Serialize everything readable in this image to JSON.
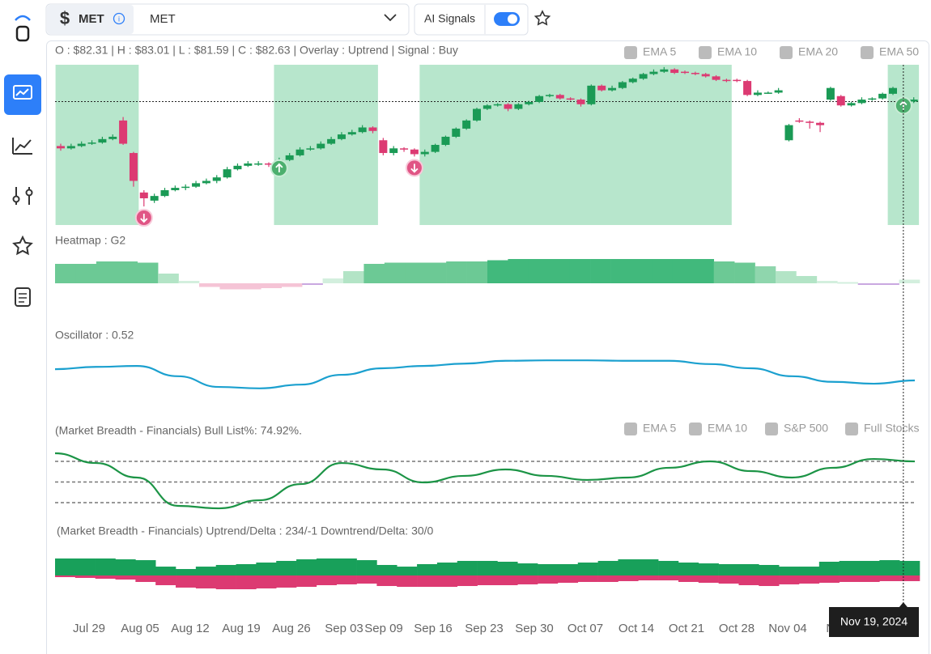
{
  "toolbar": {
    "symbol": "MET",
    "search": "MET",
    "ai_signals": "AI Signals"
  },
  "chart": {
    "type": "candlestick",
    "info": "O : $82.31 | H : $83.01 | L : $81.59 | C : $82.63 | Overlay  : Uptrend | Signal : Buy",
    "legend": [
      "EMA 5",
      "EMA 10",
      "EMA 20",
      "EMA 50"
    ],
    "ylim": [
      72,
      85.8
    ],
    "candles": [
      [
        78.8,
        79.0,
        78.4,
        78.6
      ],
      [
        78.6,
        79.0,
        78.5,
        78.8
      ],
      [
        78.8,
        79.2,
        78.7,
        79.0
      ],
      [
        79.0,
        79.3,
        78.9,
        79.1
      ],
      [
        79.1,
        79.6,
        79.0,
        79.4
      ],
      [
        79.4,
        79.8,
        79.3,
        79.6
      ],
      [
        81.0,
        81.3,
        78.9,
        79.0
      ],
      [
        78.2,
        78.3,
        75.3,
        75.8
      ],
      [
        74.8,
        75.0,
        73.6,
        74.3
      ],
      [
        74.1,
        74.7,
        73.9,
        74.5
      ],
      [
        74.5,
        75.2,
        74.4,
        75.0
      ],
      [
        75.0,
        75.4,
        74.9,
        75.2
      ],
      [
        75.2,
        75.5,
        75.0,
        75.3
      ],
      [
        75.3,
        75.8,
        75.2,
        75.6
      ],
      [
        75.6,
        76.0,
        75.5,
        75.8
      ],
      [
        75.8,
        76.3,
        75.6,
        76.1
      ],
      [
        76.1,
        77.0,
        76.0,
        76.8
      ],
      [
        76.8,
        77.3,
        76.7,
        77.1
      ],
      [
        77.1,
        77.5,
        77.0,
        77.3
      ],
      [
        77.3,
        77.5,
        77.1,
        77.3
      ],
      [
        77.3,
        77.4,
        77.0,
        77.2
      ],
      [
        77.2,
        77.8,
        77.1,
        77.6
      ],
      [
        77.6,
        78.2,
        77.5,
        78.0
      ],
      [
        78.0,
        78.7,
        77.9,
        78.5
      ],
      [
        78.5,
        78.8,
        78.4,
        78.6
      ],
      [
        78.6,
        79.2,
        78.5,
        79.0
      ],
      [
        79.0,
        79.6,
        78.9,
        79.4
      ],
      [
        79.4,
        80.0,
        79.3,
        79.8
      ],
      [
        79.8,
        80.2,
        79.7,
        80.0
      ],
      [
        80.0,
        80.6,
        79.9,
        80.4
      ],
      [
        80.4,
        80.5,
        79.9,
        80.1
      ],
      [
        79.3,
        79.5,
        78.0,
        78.2
      ],
      [
        78.2,
        78.8,
        78.0,
        78.6
      ],
      [
        78.6,
        78.7,
        78.3,
        78.5
      ],
      [
        78.5,
        78.6,
        77.9,
        78.1
      ],
      [
        78.1,
        78.5,
        77.9,
        78.3
      ],
      [
        78.3,
        79.0,
        78.2,
        78.9
      ],
      [
        78.9,
        79.7,
        78.8,
        79.6
      ],
      [
        79.6,
        80.4,
        79.5,
        80.3
      ],
      [
        80.3,
        81.1,
        80.2,
        81.0
      ],
      [
        81.0,
        82.1,
        80.9,
        82.0
      ],
      [
        82.0,
        82.4,
        81.9,
        82.3
      ],
      [
        82.3,
        82.5,
        82.2,
        82.4
      ],
      [
        82.4,
        82.5,
        81.8,
        82.0
      ],
      [
        82.0,
        82.5,
        81.9,
        82.4
      ],
      [
        82.4,
        82.7,
        82.3,
        82.6
      ],
      [
        82.6,
        83.2,
        82.5,
        83.1
      ],
      [
        83.1,
        83.3,
        83.0,
        83.2
      ],
      [
        83.2,
        83.3,
        82.8,
        82.9
      ],
      [
        82.9,
        83.0,
        82.7,
        82.8
      ],
      [
        82.8,
        82.9,
        82.2,
        82.4
      ],
      [
        82.4,
        84.1,
        82.3,
        84.0
      ],
      [
        84.0,
        84.1,
        83.5,
        83.6
      ],
      [
        83.6,
        84.0,
        83.5,
        83.8
      ],
      [
        83.8,
        84.4,
        83.7,
        84.3
      ],
      [
        84.3,
        84.7,
        84.2,
        84.6
      ],
      [
        84.6,
        85.1,
        84.5,
        85.0
      ],
      [
        85.0,
        85.4,
        84.9,
        85.2
      ],
      [
        85.2,
        85.6,
        85.1,
        85.4
      ],
      [
        85.4,
        85.5,
        85.0,
        85.1
      ],
      [
        85.2,
        85.3,
        85.0,
        85.1
      ],
      [
        85.1,
        85.2,
        84.9,
        85.0
      ],
      [
        85.0,
        85.1,
        84.7,
        84.8
      ],
      [
        84.8,
        84.9,
        84.4,
        84.5
      ],
      [
        84.5,
        84.6,
        84.3,
        84.4
      ],
      [
        84.5,
        84.6,
        84.3,
        84.4
      ],
      [
        84.4,
        84.5,
        83.1,
        83.2
      ],
      [
        83.2,
        83.6,
        83.1,
        83.4
      ],
      [
        83.4,
        83.5,
        83.3,
        83.4
      ],
      [
        83.4,
        83.8,
        83.3,
        83.6
      ],
      [
        79.3,
        80.7,
        79.2,
        80.6
      ],
      [
        81.0,
        81.2,
        80.8,
        80.9
      ],
      [
        80.9,
        81.0,
        80.3,
        80.8
      ],
      [
        80.8,
        80.9,
        80.0,
        80.6
      ],
      [
        82.8,
        83.9,
        82.7,
        83.8
      ],
      [
        83.1,
        83.2,
        82.2,
        82.3
      ],
      [
        82.3,
        82.6,
        82.2,
        82.5
      ],
      [
        82.5,
        83.0,
        82.4,
        82.8
      ],
      [
        82.8,
        83.0,
        82.7,
        82.9
      ],
      [
        82.9,
        83.4,
        82.8,
        83.3
      ],
      [
        83.3,
        83.9,
        83.2,
        83.8
      ],
      [
        82.31,
        83.01,
        81.59,
        82.63
      ],
      [
        82.63,
        83.0,
        82.5,
        82.8
      ]
    ],
    "up_color": "#1a9a55",
    "down_color": "#dc3a72",
    "uptrend_zones": [
      [
        0,
        7
      ],
      [
        21,
        30
      ],
      [
        35,
        64
      ],
      [
        80,
        82
      ]
    ],
    "zone_color": "#b7e6cc",
    "signals": [
      {
        "at": 8,
        "type": "sell"
      },
      {
        "at": 21,
        "type": "buy"
      },
      {
        "at": 34,
        "type": "sell"
      },
      {
        "at": 81,
        "type": "buy"
      }
    ],
    "crosshair_at": 81
  },
  "heatmap": {
    "type": "bar",
    "title": "Heatmap : G2",
    "ylim": [
      -1,
      1
    ],
    "values": [
      0.8,
      0.8,
      0.9,
      0.9,
      0.85,
      0.4,
      0.1,
      -0.15,
      -0.25,
      -0.25,
      -0.2,
      -0.15,
      -0.05,
      0.2,
      0.5,
      0.8,
      0.85,
      0.85,
      0.85,
      0.9,
      0.9,
      0.95,
      1.0,
      1.0,
      1.0,
      1.0,
      1.0,
      1.0,
      1.0,
      1.0,
      1.0,
      1.0,
      0.9,
      0.85,
      0.7,
      0.5,
      0.3,
      0.1,
      0.05,
      -0.05,
      -0.05,
      0.15
    ]
  },
  "oscillator": {
    "type": "line",
    "title": "Oscillator : 0.52",
    "ylim": [
      0,
      1.3
    ],
    "color": "#1ba0cf",
    "values": [
      0.76,
      0.81,
      0.83,
      0.61,
      0.38,
      0.35,
      0.43,
      0.64,
      0.78,
      0.83,
      0.88,
      0.94,
      0.95,
      0.95,
      0.94,
      0.94,
      0.87,
      0.78,
      0.61,
      0.49,
      0.45,
      0.52
    ]
  },
  "breadth": {
    "type": "line",
    "title": "(Market Breadth - Financials) Bull List%: 74.92%.",
    "legend": [
      "EMA 5",
      "EMA 10",
      "S&P 500",
      "Full Stocks"
    ],
    "ylim": [
      0,
      100
    ],
    "levels": [
      25,
      50,
      75
    ],
    "color": "#1c9446",
    "values": [
      84.8,
      73.0,
      55.4,
      21.1,
      18.1,
      27.9,
      47.5,
      73.0,
      65.2,
      49.5,
      57.4,
      65.2,
      57.4,
      52.5,
      55.4,
      67.2,
      75.0,
      63.2,
      55.4,
      67.2,
      77.9,
      74.92
    ]
  },
  "delta": {
    "type": "bar",
    "title": "(Market Breadth - Financials) Uptrend/Delta : 234/-1  Downtrend/Delta: 30/0",
    "ylim": [
      -250,
      250
    ],
    "up_color": "#18a05a",
    "down_color": "#dc3a72",
    "up": [
      247,
      247,
      247,
      235,
      223,
      129,
      94,
      129,
      153,
      165,
      188,
      212,
      235,
      247,
      247,
      223,
      153,
      129,
      165,
      188,
      212,
      212,
      200,
      176,
      165,
      165,
      188,
      212,
      235,
      235,
      212,
      188,
      176,
      165,
      165,
      153,
      129,
      129,
      200,
      212,
      212,
      223,
      212
    ],
    "down": [
      24,
      35,
      47,
      59,
      94,
      141,
      176,
      188,
      200,
      200,
      188,
      176,
      165,
      141,
      129,
      118,
      153,
      165,
      165,
      165,
      153,
      141,
      141,
      129,
      118,
      106,
      94,
      94,
      82,
      71,
      71,
      94,
      106,
      118,
      141,
      153,
      129,
      118,
      106,
      94,
      94,
      82,
      82
    ]
  },
  "x_labels": [
    "Jul 29",
    "Aug 05",
    "Aug 12",
    "Aug 19",
    "Aug 26",
    "Sep 03",
    "Sep 09",
    "Sep 16",
    "Sep 23",
    "Sep 30",
    "Oct 07",
    "Oct 14",
    "Oct 21",
    "Oct 28",
    "Nov 04",
    "No"
  ],
  "tooltip": "Nov 19, 2024"
}
